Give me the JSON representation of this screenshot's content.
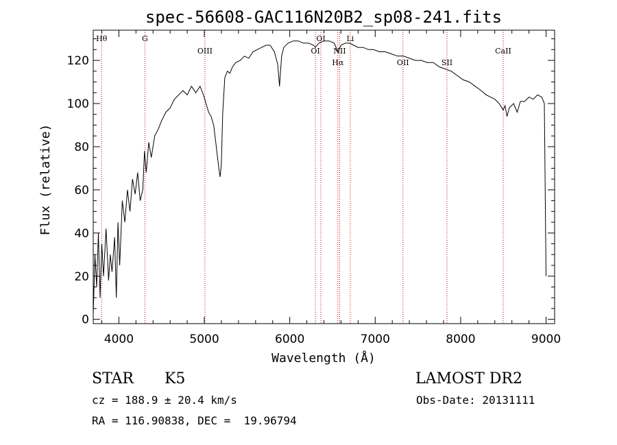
{
  "chart_data": {
    "type": "line",
    "title": "spec-56608-GAC116N20B2_sp08-241.fits",
    "xlabel": "Wavelength (Å)",
    "ylabel": "Flux (relative)",
    "xlim": [
      3700,
      9100
    ],
    "ylim": [
      -2,
      134
    ],
    "xticks": [
      4000,
      5000,
      6000,
      7000,
      8000,
      9000
    ],
    "yticks": [
      0,
      20,
      40,
      60,
      80,
      100,
      120
    ],
    "grid": false,
    "legend": "none",
    "line_color": "#000000",
    "marker_color": "#cc0000",
    "series": [
      {
        "x": [
          3700,
          3720,
          3740,
          3760,
          3780,
          3800,
          3820,
          3850,
          3880,
          3900,
          3920,
          3950,
          3970,
          3990,
          4010,
          4040,
          4070,
          4100,
          4130,
          4160,
          4190,
          4220,
          4250,
          4280,
          4300,
          4320,
          4350,
          4380,
          4420,
          4460,
          4500,
          4550,
          4600,
          4650,
          4700,
          4750,
          4800,
          4850,
          4900,
          4950,
          4990,
          5020,
          5050,
          5080,
          5110,
          5140,
          5170,
          5185,
          5200,
          5215,
          5240,
          5270,
          5300,
          5330,
          5370,
          5420,
          5470,
          5520,
          5570,
          5620,
          5670,
          5720,
          5770,
          5820,
          5860,
          5880,
          5892,
          5905,
          5930,
          5980,
          6040,
          6100,
          6160,
          6220,
          6280,
          6300,
          6340,
          6400,
          6460,
          6520,
          6563,
          6600,
          6650,
          6700,
          6750,
          6800,
          6860,
          6920,
          6980,
          7050,
          7120,
          7190,
          7260,
          7330,
          7400,
          7470,
          7540,
          7610,
          7680,
          7750,
          7820,
          7890,
          7960,
          8030,
          8100,
          8170,
          8240,
          8300,
          8350,
          8400,
          8450,
          8498,
          8520,
          8542,
          8570,
          8620,
          8662,
          8700,
          8750,
          8800,
          8850,
          8900,
          8950,
          8980,
          9000
        ],
        "y": [
          2,
          30,
          15,
          40,
          10,
          35,
          20,
          42,
          18,
          30,
          22,
          38,
          10,
          45,
          25,
          55,
          45,
          60,
          50,
          65,
          58,
          68,
          55,
          60,
          78,
          68,
          82,
          75,
          85,
          88,
          92,
          96,
          98,
          102,
          104,
          106,
          104,
          108,
          105,
          108,
          104,
          100,
          96,
          94,
          90,
          80,
          70,
          66,
          72,
          95,
          112,
          115,
          114,
          117,
          119,
          120,
          122,
          121,
          124,
          125,
          126,
          127,
          127,
          124,
          118,
          108,
          115,
          122,
          126,
          128,
          129,
          129,
          128,
          128,
          127,
          126,
          128,
          129,
          129,
          128,
          124,
          127,
          128,
          128,
          127,
          126,
          126,
          125,
          125,
          124,
          124,
          123,
          122,
          122,
          121,
          120,
          120,
          119,
          119,
          117,
          116,
          115,
          113,
          111,
          110,
          108,
          106,
          104,
          103,
          102,
          100,
          97,
          99,
          94,
          98,
          100,
          96,
          101,
          101,
          103,
          102,
          104,
          103,
          100,
          20
        ]
      }
    ],
    "line_markers": [
      {
        "label": "Hθ",
        "x": 3798,
        "pos": "top"
      },
      {
        "label": "G",
        "x": 4305,
        "pos": "top"
      },
      {
        "label": "OIII",
        "x": 5007,
        "pos": "mid"
      },
      {
        "label": "OI",
        "x": 6300,
        "pos": "mid"
      },
      {
        "label": "OI",
        "x": 6364,
        "pos": "top"
      },
      {
        "label": "Hα",
        "x": 6563,
        "pos": "low"
      },
      {
        "label": "NII",
        "x": 6584,
        "pos": "mid"
      },
      {
        "label": "Li",
        "x": 6708,
        "pos": "top"
      },
      {
        "label": "OII",
        "x": 7325,
        "pos": "low"
      },
      {
        "label": "SII",
        "x": 7840,
        "pos": "low"
      },
      {
        "label": "CaII",
        "x": 8498,
        "pos": "mid"
      }
    ]
  },
  "info": {
    "object_class": "STAR",
    "subclass": "K5",
    "survey": "LAMOST DR2",
    "redshift": "cz = 188.9 ± 20.4 km/s",
    "obs_date": "Obs-Date: 20131111",
    "coords": "RA = 116.90838, DEC =  19.96794"
  }
}
